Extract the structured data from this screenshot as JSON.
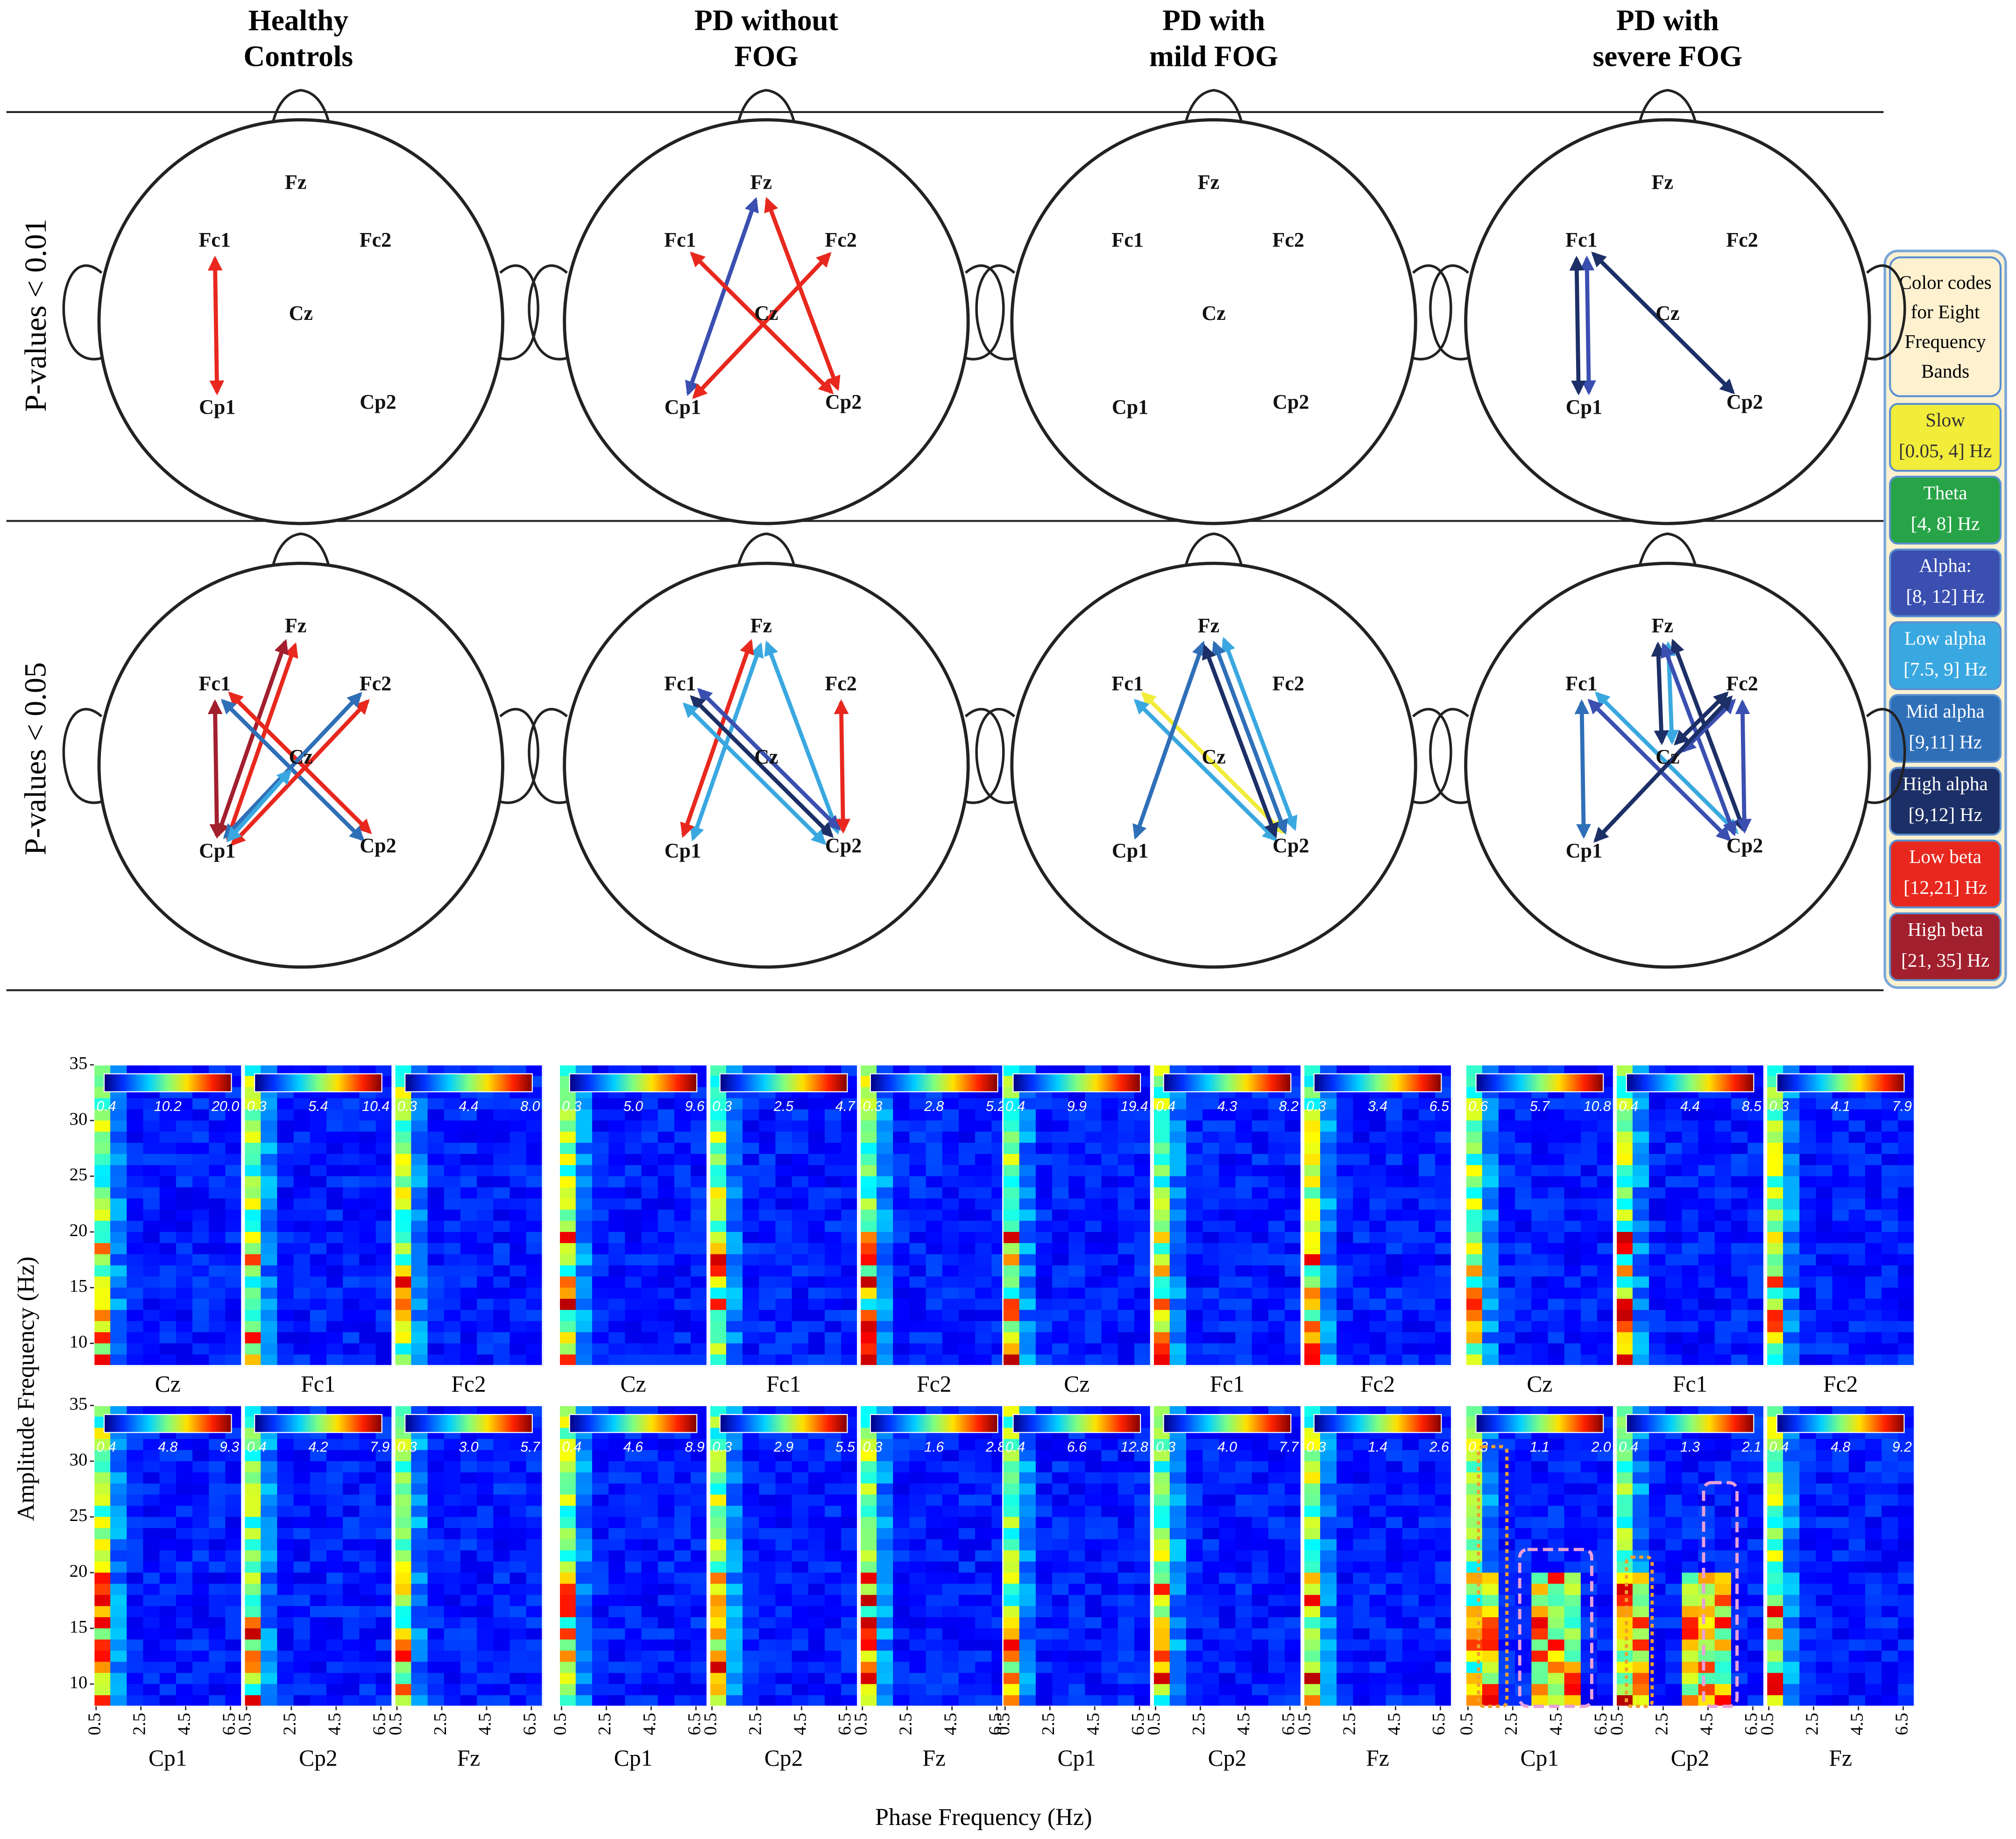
{
  "columns": [
    [
      "Healthy",
      "Controls"
    ],
    [
      "PD without",
      "FOG"
    ],
    [
      "PD with",
      "mild FOG"
    ],
    [
      "PD with",
      "severe FOG"
    ]
  ],
  "row_labels": [
    "P-values < 0.01",
    "P-values < 0.05"
  ],
  "electrodes": [
    "Fz",
    "Fc1",
    "Fc2",
    "Cz",
    "Cp1",
    "Cp2"
  ],
  "connections": [
    [
      [
        {
          "from": "Fc1",
          "to": "Cp1",
          "band": "Low beta"
        }
      ],
      [
        {
          "from": "Fz",
          "to": "Cp1",
          "band": "Alpha:"
        },
        {
          "from": "Fc1",
          "to": "Cp2",
          "band": "Low beta"
        },
        {
          "from": "Fc2",
          "to": "Cp1",
          "band": "Low beta"
        },
        {
          "from": "Fz",
          "to": "Cp2",
          "band": "Low beta"
        }
      ],
      [],
      [
        {
          "from": "Fc1",
          "to": "Cp1",
          "band": "Alpha:"
        },
        {
          "from": "Fc1",
          "to": "Cp1",
          "band": "High alpha"
        },
        {
          "from": "Fc1",
          "to": "Cp2",
          "band": "High alpha"
        }
      ]
    ],
    [
      [
        {
          "from": "Fc1",
          "to": "Cp1",
          "band": "High beta"
        },
        {
          "from": "Fz",
          "to": "Cp1",
          "band": "Low beta"
        },
        {
          "from": "Fz",
          "to": "Cp1",
          "band": "High beta"
        },
        {
          "from": "Fc1",
          "to": "Cp2",
          "band": "Low beta"
        },
        {
          "from": "Fc1",
          "to": "Cp2",
          "band": "Mid alpha"
        },
        {
          "from": "Fc2",
          "to": "Cp1",
          "band": "Low beta"
        },
        {
          "from": "Fc2",
          "to": "Cp1",
          "band": "Mid alpha"
        },
        {
          "from": "Cz",
          "to": "Cp1",
          "band": "Low alpha"
        }
      ],
      [
        {
          "from": "Fz",
          "to": "Cp1",
          "band": "Low alpha"
        },
        {
          "from": "Fz",
          "to": "Cp1",
          "band": "Low beta"
        },
        {
          "from": "Fz",
          "to": "Cp2",
          "band": "Low alpha"
        },
        {
          "from": "Fc1",
          "to": "Cp2",
          "band": "Alpha:"
        },
        {
          "from": "Fc1",
          "to": "Cp2",
          "band": "High alpha"
        },
        {
          "from": "Fc2",
          "to": "Cp2",
          "band": "Low beta"
        },
        {
          "from": "Fc1",
          "to": "Cp2",
          "band": "Low alpha"
        }
      ],
      [
        {
          "from": "Fc1",
          "to": "Cp2",
          "band": "Slow"
        },
        {
          "from": "Fc1",
          "to": "Cp2",
          "band": "Low alpha"
        },
        {
          "from": "Fz",
          "to": "Cp1",
          "band": "Mid alpha"
        },
        {
          "from": "Fz",
          "to": "Cp2",
          "band": "Low alpha"
        },
        {
          "from": "Fz",
          "to": "Cp2",
          "band": "Mid alpha"
        },
        {
          "from": "Fz",
          "to": "Cp2",
          "band": "High alpha"
        }
      ],
      [
        {
          "from": "Fc1",
          "to": "Cp1",
          "band": "Mid alpha"
        },
        {
          "from": "Fc1",
          "to": "Cp2",
          "band": "Low alpha"
        },
        {
          "from": "Fc1",
          "to": "Cp2",
          "band": "Alpha:"
        },
        {
          "from": "Fz",
          "to": "Cz",
          "band": "Low alpha"
        },
        {
          "from": "Fz",
          "to": "Cz",
          "band": "High alpha"
        },
        {
          "from": "Fz",
          "to": "Cp2",
          "band": "High alpha"
        },
        {
          "from": "Fz",
          "to": "Cp2",
          "band": "Alpha:"
        },
        {
          "from": "Fc2",
          "to": "Cz",
          "band": "Alpha:"
        },
        {
          "from": "Fc2",
          "to": "Cz",
          "band": "High alpha"
        },
        {
          "from": "Fc2",
          "to": "Cp1",
          "band": "High alpha"
        },
        {
          "from": "Fc2",
          "to": "Cp2",
          "band": "Alpha:"
        }
      ]
    ]
  ],
  "legend": {
    "title": [
      "Color codes",
      "for Eight",
      "Frequency",
      "Bands"
    ],
    "bands": [
      {
        "name": "Slow",
        "range": "[0.05, 4] Hz",
        "color": "#f2ec3b",
        "text_color": "#333333"
      },
      {
        "name": "Theta",
        "range": "[4, 8] Hz",
        "color": "#27a447",
        "text_color": "#ffffff"
      },
      {
        "name": "Alpha:",
        "range": "[8, 12] Hz",
        "color": "#3a4fb0",
        "text_color": "#ffffff"
      },
      {
        "name": "Low alpha",
        "range": "[7.5, 9] Hz",
        "color": "#3aa8e0",
        "text_color": "#ffffff"
      },
      {
        "name": "Mid alpha",
        "range": "[9,11] Hz",
        "color": "#2f6fb8",
        "text_color": "#ffffff"
      },
      {
        "name": "High alpha",
        "range": "[9,12] Hz",
        "color": "#1c2f66",
        "text_color": "#ffffff"
      },
      {
        "name": "Low beta",
        "range": "[12,21] Hz",
        "color": "#e8281e",
        "text_color": "#ffffff"
      },
      {
        "name": "High beta",
        "range": "[21, 35] Hz",
        "color": "#a21f2e",
        "text_color": "#ffffff"
      }
    ]
  },
  "heatmaps": {
    "y_label": "Amplitude Frequency (Hz)",
    "x_label": "Phase Frequency (Hz)",
    "ylim": [
      8,
      35
    ],
    "yticks": [
      10,
      15,
      20,
      25,
      30,
      35
    ],
    "xlim": [
      0.4,
      7
    ],
    "xticks": [
      0.5,
      2.5,
      4.5,
      6.5
    ],
    "groups": [
      {
        "rows": [
          [
            {
              "channel": "Cz",
              "colorbar": [
                "0.4",
                "10.2",
                "20.0"
              ]
            },
            {
              "channel": "Fc1",
              "colorbar": [
                "0.3",
                "5.4",
                "10.4"
              ]
            },
            {
              "channel": "Fc2",
              "colorbar": [
                "0.3",
                "4.4",
                "8.0"
              ]
            }
          ],
          [
            {
              "channel": "Cp1",
              "colorbar": [
                "0.4",
                "4.8",
                "9.3"
              ]
            },
            {
              "channel": "Cp2",
              "colorbar": [
                "0.4",
                "4.2",
                "7.9"
              ]
            },
            {
              "channel": "Fz",
              "colorbar": [
                "0.3",
                "3.0",
                "5.7"
              ]
            }
          ]
        ]
      },
      {
        "rows": [
          [
            {
              "channel": "Cz",
              "colorbar": [
                "0.3",
                "5.0",
                "9.6"
              ]
            },
            {
              "channel": "Fc1",
              "colorbar": [
                "0.3",
                "2.5",
                "4.7"
              ]
            },
            {
              "channel": "Fc2",
              "colorbar": [
                "0.3",
                "2.8",
                "5.2"
              ]
            }
          ],
          [
            {
              "channel": "Cp1",
              "colorbar": [
                "0.4",
                "4.6",
                "8.9"
              ]
            },
            {
              "channel": "Cp2",
              "colorbar": [
                "0.3",
                "2.9",
                "5.5"
              ]
            },
            {
              "channel": "Fz",
              "colorbar": [
                "0.3",
                "1.6",
                "2.8"
              ]
            }
          ]
        ]
      },
      {
        "rows": [
          [
            {
              "channel": "Cz",
              "colorbar": [
                "0.4",
                "9.9",
                "19.4"
              ]
            },
            {
              "channel": "Fc1",
              "colorbar": [
                "0.4",
                "4.3",
                "8.2"
              ]
            },
            {
              "channel": "Fc2",
              "colorbar": [
                "0.3",
                "3.4",
                "6.5"
              ]
            }
          ],
          [
            {
              "channel": "Cp1",
              "colorbar": [
                "0.4",
                "6.6",
                "12.8"
              ]
            },
            {
              "channel": "Cp2",
              "colorbar": [
                "0.3",
                "4.0",
                "7.7"
              ]
            },
            {
              "channel": "Fz",
              "colorbar": [
                "0.3",
                "1.4",
                "2.6"
              ]
            }
          ]
        ]
      },
      {
        "rows": [
          [
            {
              "channel": "Cz",
              "colorbar": [
                "0.6",
                "5.7",
                "10.8"
              ]
            },
            {
              "channel": "Fc1",
              "colorbar": [
                "0.4",
                "4.4",
                "8.5"
              ]
            },
            {
              "channel": "Fc2",
              "colorbar": [
                "0.3",
                "4.1",
                "7.9"
              ]
            }
          ],
          [
            {
              "channel": "Cp1",
              "colorbar": [
                "0.3",
                "1.1",
                "2.0"
              ]
            },
            {
              "channel": "Cp2",
              "colorbar": [
                "0.4",
                "1.3",
                "2.1"
              ]
            },
            {
              "channel": "Fz",
              "colorbar": [
                "0.4",
                "4.8",
                "9.2"
              ]
            }
          ]
        ]
      }
    ]
  }
}
